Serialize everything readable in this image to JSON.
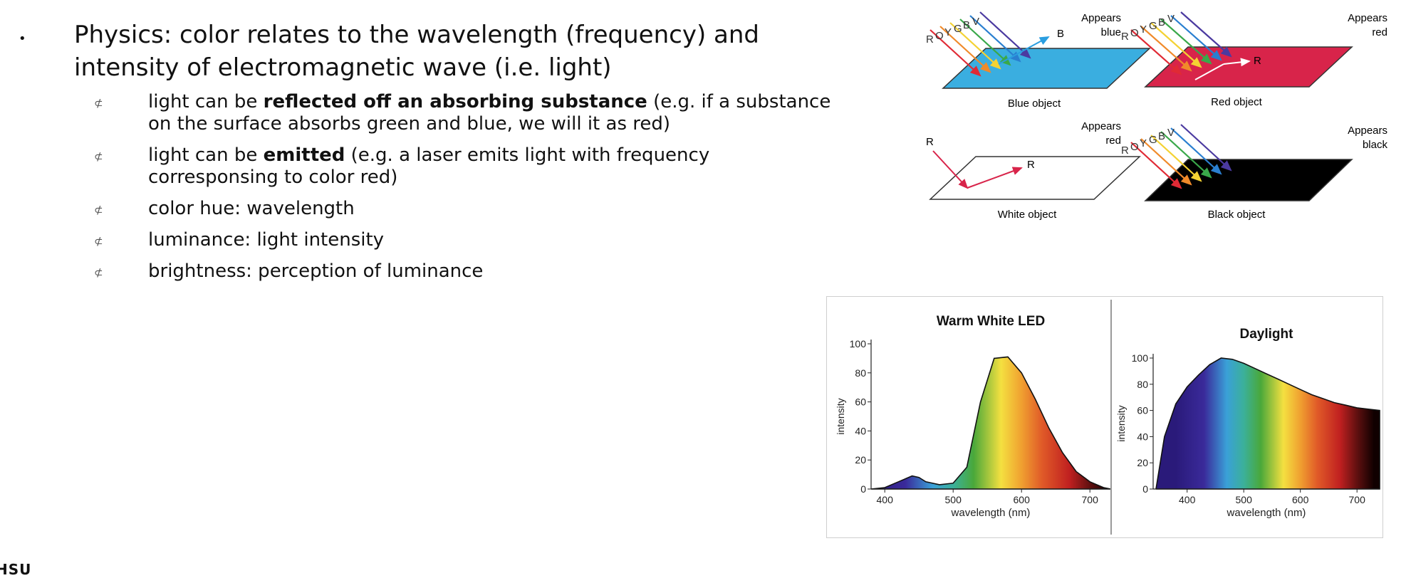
{
  "slide": {
    "main_bullet": "•",
    "main_text": "Physics: color relates to the wavelength (frequency) and intensity of electromagnetic wave (i.e. light)",
    "sub_glyph": "⊄",
    "sub_items": [
      {
        "pre": "light can be ",
        "bold": "reflected off an absorbing substance",
        "post": " (e.g. if a substance on the surface absorbs green and blue, we will it as red)"
      },
      {
        "pre": "light can be ",
        "bold": "emitted",
        "post": " (e.g. a laser emits light with frequency corresponsing to color red)"
      },
      {
        "pre": "color hue: wavelength",
        "bold": "",
        "post": ""
      },
      {
        "pre": "luminance: light intensity",
        "bold": "",
        "post": ""
      },
      {
        "pre": "brightness: perception of luminance",
        "bold": "",
        "post": ""
      }
    ],
    "footer_mark": "HSU"
  },
  "diagram": {
    "rays": "ROYGBV",
    "panels": [
      {
        "caption": "Blue object",
        "appears": [
          "Appears",
          "blue"
        ],
        "reflected": "B",
        "surface_color": "#3aaee0"
      },
      {
        "caption": "Red object",
        "appears": [
          "Appears",
          "red"
        ],
        "reflected": "R",
        "surface_color": "#d8244a"
      },
      {
        "caption": "White object",
        "appears": [
          "Appears",
          "red"
        ],
        "incoming": "R",
        "reflected": "R",
        "surface_color": "#ffffff"
      },
      {
        "caption": "Black object",
        "appears": [
          "Appears",
          "black"
        ],
        "surface_color": "#000000"
      }
    ],
    "ray_colors": [
      "#e02a35",
      "#f08a2a",
      "#f4d233",
      "#3aa84a",
      "#2a7fd0",
      "#4b3aa0"
    ]
  },
  "chart_data": [
    {
      "type": "area",
      "title": "Warm White LED",
      "xlabel": "wavelength (nm)",
      "ylabel": "intensity",
      "xlim": [
        380,
        730
      ],
      "ylim": [
        0,
        100
      ],
      "xticks": [
        400,
        500,
        600,
        700
      ],
      "yticks": [
        0,
        20,
        40,
        60,
        80,
        100
      ],
      "x": [
        380,
        400,
        420,
        440,
        450,
        460,
        480,
        500,
        520,
        540,
        560,
        580,
        600,
        620,
        640,
        660,
        680,
        700,
        720,
        730
      ],
      "y": [
        0,
        1,
        5,
        9,
        8,
        5,
        3,
        4,
        15,
        60,
        90,
        91,
        80,
        62,
        42,
        25,
        12,
        5,
        1,
        0
      ]
    },
    {
      "type": "area",
      "title": "Daylight",
      "xlabel": "wavelength (nm)",
      "ylabel": "intensity",
      "xlim": [
        340,
        740
      ],
      "ylim": [
        0,
        100
      ],
      "xticks": [
        400,
        500,
        600,
        700
      ],
      "yticks": [
        0,
        20,
        40,
        60,
        80,
        100
      ],
      "x": [
        345,
        360,
        380,
        400,
        420,
        440,
        460,
        480,
        500,
        520,
        540,
        560,
        580,
        600,
        620,
        640,
        660,
        680,
        700,
        720,
        740
      ],
      "y": [
        0,
        40,
        65,
        78,
        87,
        95,
        100,
        99,
        96,
        92,
        88,
        84,
        80,
        76,
        72,
        69,
        66,
        64,
        62,
        61,
        60
      ]
    }
  ]
}
